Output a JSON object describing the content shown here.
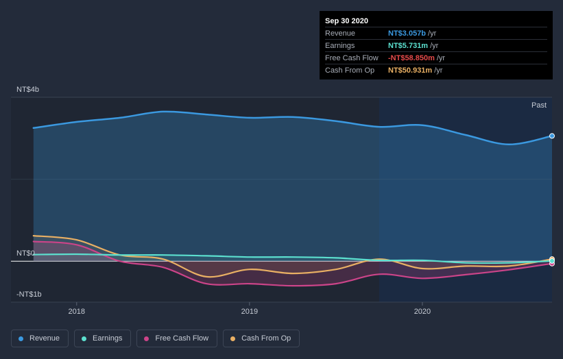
{
  "colors": {
    "revenue": "#3b99e0",
    "earnings": "#5ce0cf",
    "free_cash_flow": "#cc4489",
    "cash_from_op": "#e9b064"
  },
  "tooltip": {
    "date": "Sep 30 2020",
    "rows": [
      {
        "label": "Revenue",
        "value": "NT$3.057b",
        "unit": "/yr"
      },
      {
        "label": "Earnings",
        "value": "NT$5.731m",
        "unit": "/yr"
      },
      {
        "label": "Free Cash Flow",
        "value": "-NT$58.850m",
        "unit": "/yr"
      },
      {
        "label": "Cash From Op",
        "value": "NT$50.931m",
        "unit": "/yr"
      }
    ]
  },
  "legend": [
    {
      "label": "Revenue",
      "icon": "dot"
    },
    {
      "label": "Earnings",
      "icon": "dot"
    },
    {
      "label": "Free Cash Flow",
      "icon": "dot"
    },
    {
      "label": "Cash From Op",
      "icon": "dot"
    }
  ],
  "chart_data": {
    "type": "area",
    "title": "",
    "xlabel": "",
    "ylabel": "",
    "past_label": "Past",
    "y_tick_labels": [
      {
        "value": 4000,
        "label": "NT$4b"
      },
      {
        "value": 0,
        "label": "NT$0"
      },
      {
        "value": -1000,
        "label": "-NT$1b"
      }
    ],
    "x_tick_labels": [
      {
        "value": 2018.0,
        "label": "2018"
      },
      {
        "value": 2019.0,
        "label": "2019"
      },
      {
        "value": 2020.0,
        "label": "2020"
      }
    ],
    "ylim": [
      -1000,
      4000
    ],
    "xlim": [
      2017.62,
      2020.75
    ],
    "unit": "NT$ millions",
    "highlight_start": 2019.75,
    "series": [
      {
        "name": "Revenue",
        "x": [
          2017.75,
          2018.0,
          2018.25,
          2018.5,
          2018.75,
          2019.0,
          2019.25,
          2019.5,
          2019.75,
          2020.0,
          2020.25,
          2020.5,
          2020.75
        ],
        "values": [
          3250,
          3400,
          3500,
          3650,
          3580,
          3500,
          3520,
          3420,
          3280,
          3320,
          3080,
          2850,
          3057
        ]
      },
      {
        "name": "Earnings",
        "x": [
          2017.75,
          2018.0,
          2018.25,
          2018.5,
          2018.75,
          2019.0,
          2019.25,
          2019.5,
          2019.75,
          2020.0,
          2020.25,
          2020.5,
          2020.75
        ],
        "values": [
          160,
          170,
          150,
          150,
          130,
          100,
          100,
          80,
          20,
          20,
          -40,
          -40,
          5.7
        ]
      },
      {
        "name": "Free Cash Flow",
        "x": [
          2017.75,
          2018.0,
          2018.25,
          2018.5,
          2018.75,
          2019.0,
          2019.25,
          2019.5,
          2019.75,
          2020.0,
          2020.25,
          2020.5,
          2020.75
        ],
        "values": [
          480,
          400,
          0,
          -150,
          -550,
          -550,
          -600,
          -550,
          -320,
          -420,
          -330,
          -210,
          -58.85
        ]
      },
      {
        "name": "Cash From Op",
        "x": [
          2017.75,
          2018.0,
          2018.25,
          2018.5,
          2018.75,
          2019.0,
          2019.25,
          2019.5,
          2019.75,
          2020.0,
          2020.25,
          2020.5,
          2020.75
        ],
        "values": [
          620,
          520,
          150,
          50,
          -380,
          -200,
          -300,
          -200,
          50,
          -180,
          -120,
          -120,
          50.93
        ]
      }
    ]
  }
}
